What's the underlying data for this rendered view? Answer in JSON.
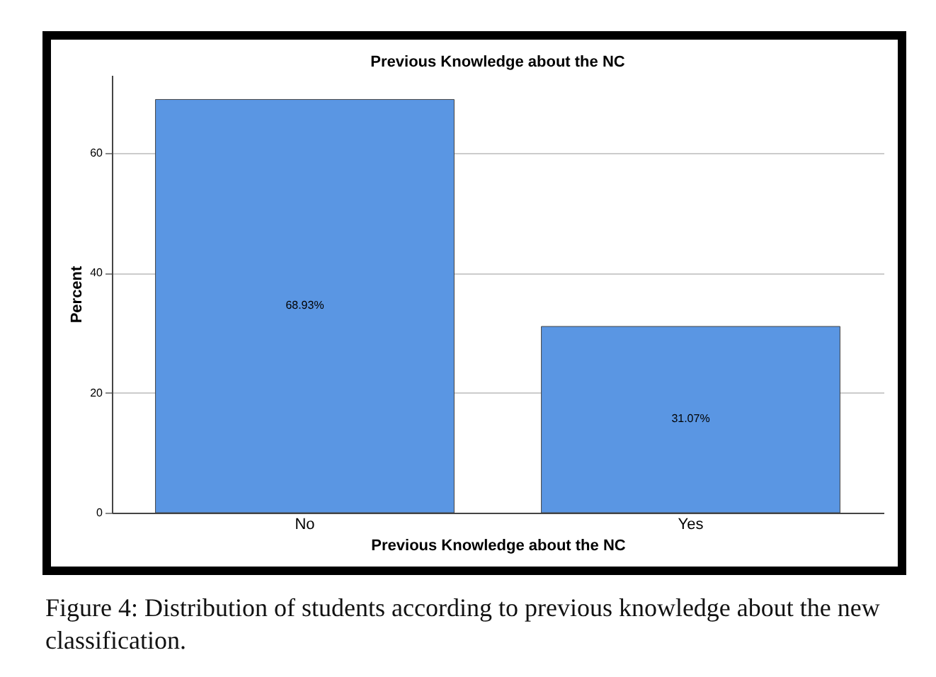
{
  "chart_data": {
    "type": "bar",
    "title": "Previous Knowledge about the NC",
    "xlabel": "Previous Knowledge about the NC",
    "ylabel": "Percent",
    "categories": [
      "No",
      "Yes"
    ],
    "values": [
      68.93,
      31.07
    ],
    "value_labels": [
      "68.93%",
      "31.07%"
    ],
    "color": "#5a96e3",
    "ylim": [
      0,
      73
    ],
    "yticks": [
      0,
      20,
      40,
      60
    ],
    "grid": "y",
    "annotations": [
      "Figure 4: Distribution of students according to previous knowledge about the new classification."
    ]
  }
}
